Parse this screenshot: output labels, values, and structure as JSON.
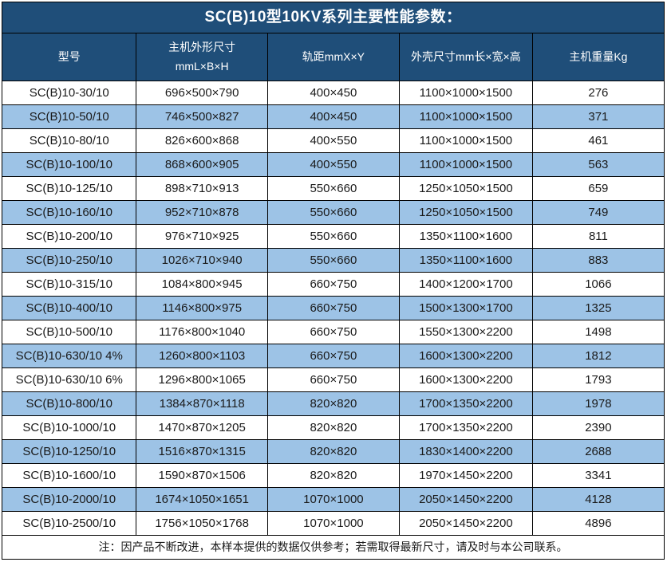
{
  "page": {
    "title": "SC(B)10型10KV系列主要性能参数：",
    "note": "注：因产品不断改进，本样本提供的数据仅供参考；若需取得最新尺寸，请及时与本公司联系。"
  },
  "colors": {
    "header_bg": "#1F4E79",
    "row_alt_bg": "#9DC3E6",
    "row_bg": "#FFFFFF",
    "border": "#000000",
    "header_text": "#FFFFFF",
    "body_text": "#1A1A1A"
  },
  "table": {
    "columns": [
      {
        "key": "model",
        "lines": [
          "型号"
        ]
      },
      {
        "key": "host-dimensions",
        "lines": [
          "主机外形尺寸",
          "mmL×B×H"
        ]
      },
      {
        "key": "rail-gauge",
        "lines": [
          "轨距mmX×Y"
        ]
      },
      {
        "key": "shell-dimensions",
        "lines": [
          "外壳尺寸mm长×宽×高"
        ]
      },
      {
        "key": "weight",
        "lines": [
          "主机重量Kg"
        ]
      }
    ],
    "rows": [
      [
        "SC(B)10-30/10",
        "696×500×790",
        "400×450",
        "1100×1000×1500",
        "276"
      ],
      [
        "SC(B)10-50/10",
        "746×500×827",
        "400×450",
        "1100×1000×1500",
        "371"
      ],
      [
        "SC(B)10-80/10",
        "826×600×868",
        "400×550",
        "1100×1000×1500",
        "461"
      ],
      [
        "SC(B)10-100/10",
        "868×600×905",
        "400×550",
        "1100×1000×1500",
        "563"
      ],
      [
        "SC(B)10-125/10",
        "898×710×913",
        "550×660",
        "1250×1050×1500",
        "659"
      ],
      [
        "SC(B)10-160/10",
        "952×710×878",
        "550×660",
        "1250×1050×1500",
        "749"
      ],
      [
        "SC(B)10-200/10",
        "976×710×925",
        "550×660",
        "1350×1100×1600",
        "811"
      ],
      [
        "SC(B)10-250/10",
        "1026×710×940",
        "550×660",
        "1350×1100×1600",
        "883"
      ],
      [
        "SC(B)10-315/10",
        "1084×800×945",
        "660×750",
        "1400×1200×1700",
        "1066"
      ],
      [
        "SC(B)10-400/10",
        "1146×800×975",
        "660×750",
        "1500×1300×1700",
        "1325"
      ],
      [
        "SC(B)10-500/10",
        "1176×800×1040",
        "660×750",
        "1550×1300×2200",
        "1498"
      ],
      [
        "SC(B)10-630/10 4%",
        "1260×800×1103",
        "660×750",
        "1600×1300×2200",
        "1812"
      ],
      [
        "SC(B)10-630/10 6%",
        "1296×800×1065",
        "660×750",
        "1600×1300×2200",
        "1793"
      ],
      [
        "SC(B)10-800/10",
        "1384×870×1118",
        "820×820",
        "1700×1350×2200",
        "1978"
      ],
      [
        "SC(B)10-1000/10",
        "1470×870×1205",
        "820×820",
        "1700×1350×2200",
        "2390"
      ],
      [
        "SC(B)10-1250/10",
        "1516×870×1315",
        "820×820",
        "1830×1400×2200",
        "2688"
      ],
      [
        "SC(B)10-1600/10",
        "1590×870×1506",
        "820×820",
        "1970×1450×2200",
        "3341"
      ],
      [
        "SC(B)10-2000/10",
        "1674×1050×1651",
        "1070×1000",
        "2050×1450×2200",
        "4128"
      ],
      [
        "SC(B)10-2500/10",
        "1756×1050×1768",
        "1070×1000",
        "2050×1450×2200",
        "4896"
      ]
    ]
  }
}
